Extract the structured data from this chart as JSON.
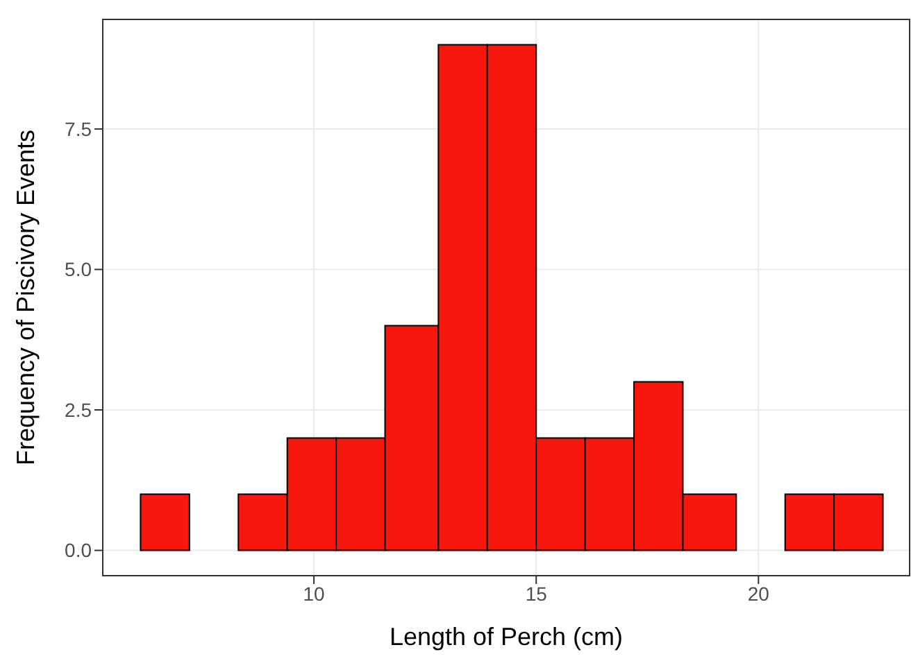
{
  "chart_data": {
    "type": "histogram",
    "xlabel": "Length of Perch (cm)",
    "ylabel": "Frequency of Piscivory Events",
    "bins": [
      6.1,
      7.2,
      8.3,
      9.4,
      10.5,
      11.6,
      12.8,
      13.9,
      15.0,
      16.1,
      17.2,
      18.3,
      19.5,
      20.6,
      21.7,
      22.8
    ],
    "values": [
      1,
      0,
      1,
      2,
      2,
      4,
      9,
      9,
      2,
      2,
      3,
      1,
      0,
      1,
      1
    ],
    "color": "#f8170c",
    "xlim": [
      5.25,
      23.4
    ],
    "xticks": [
      10,
      15,
      20
    ],
    "ylim": [
      -0.45,
      9.45
    ],
    "yticks": [
      {
        "value": 0,
        "label": "0.0"
      },
      {
        "value": 2.5,
        "label": "2.5"
      },
      {
        "value": 5,
        "label": "5.0"
      },
      {
        "value": 7.5,
        "label": "7.5"
      }
    ],
    "grid": true
  }
}
